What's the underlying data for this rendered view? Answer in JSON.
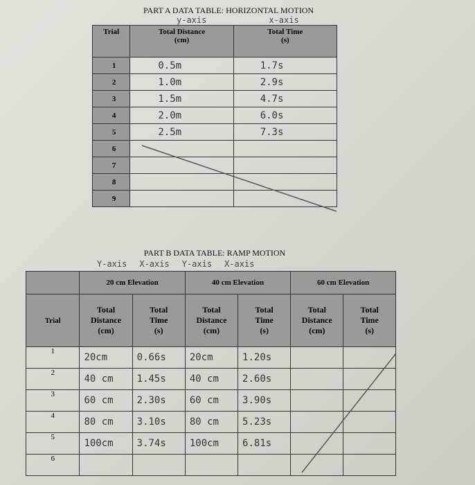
{
  "part_a": {
    "title": "PART A DATA TABLE: HORIZONTAL MOTION",
    "axis_notes": [
      "y-axis",
      "x-axis"
    ],
    "headers": [
      [
        "Trial"
      ],
      [
        "Total Distance",
        "(cm)"
      ],
      [
        "Total Time",
        "(s)"
      ]
    ],
    "trials": [
      "1",
      "2",
      "3",
      "4",
      "5",
      "6",
      "7",
      "8",
      "9"
    ],
    "entries": [
      [
        "0.5m",
        "1.7s"
      ],
      [
        "1.0m",
        "2.9s"
      ],
      [
        "1.5m",
        "4.7s"
      ],
      [
        "2.0m",
        "6.0s"
      ],
      [
        "2.5m",
        "7.3s"
      ]
    ]
  },
  "part_b": {
    "title": "PART B DATA TABLE: RAMP MOTION",
    "axis_notes": [
      "Y-axis",
      "X-axis",
      "Y-axis",
      "X-axis"
    ],
    "groups": [
      "20 cm Elevation",
      "40 cm Elevation",
      "60 cm Elevation"
    ],
    "trial_header": "Trial",
    "subheaders": [
      [
        "Total",
        "Distance",
        "(cm)"
      ],
      [
        "Total",
        "Time",
        "(s)"
      ]
    ],
    "trials": [
      "1",
      "2",
      "3",
      "4",
      "5",
      "6"
    ],
    "entries": [
      [
        "20cm",
        "0.66s",
        "20cm",
        "1.20s"
      ],
      [
        "40 cm",
        "1.45s",
        "40 cm",
        "2.60s"
      ],
      [
        "60 cm",
        "2.30s",
        "60 cm",
        "3.90s"
      ],
      [
        "80 cm",
        "3.10s",
        "80 cm",
        "5.23s"
      ],
      [
        "100cm",
        "3.74s",
        "100cm",
        "6.81s"
      ]
    ]
  }
}
